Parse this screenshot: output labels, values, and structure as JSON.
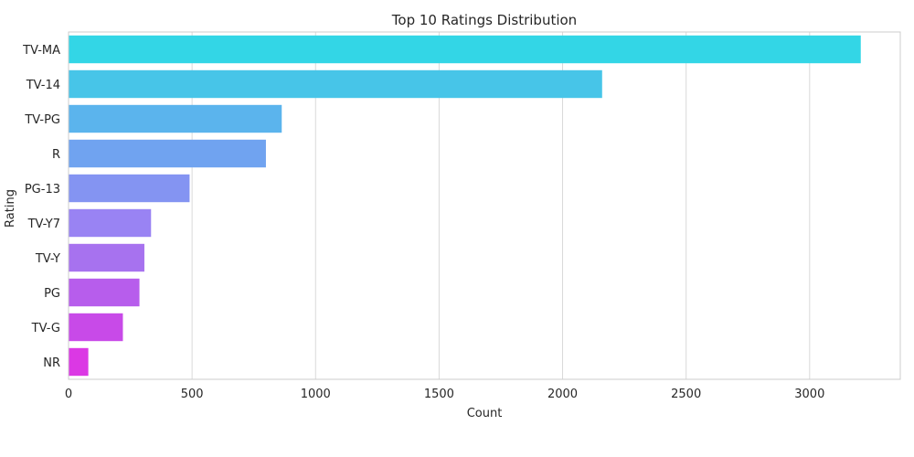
{
  "chart_data": {
    "type": "bar",
    "orientation": "horizontal",
    "title": "Top 10 Ratings Distribution",
    "xlabel": "Count",
    "ylabel": "Rating",
    "categories": [
      "TV-MA",
      "TV-14",
      "TV-PG",
      "R",
      "PG-13",
      "TV-Y7",
      "TV-Y",
      "PG",
      "TV-G",
      "NR"
    ],
    "values": [
      3207,
      2160,
      863,
      799,
      490,
      334,
      307,
      287,
      220,
      80
    ],
    "xlim": [
      0,
      3367
    ],
    "xticks": [
      0,
      500,
      1000,
      1500,
      2000,
      2500,
      3000
    ],
    "colors": [
      "#33d6e6",
      "#47c5e8",
      "#5bb4ed",
      "#70a3f0",
      "#8494f2",
      "#9983f3",
      "#a772ef",
      "#b75dec",
      "#c84ae8",
      "#db38e4"
    ],
    "grid": "x",
    "legend": "none"
  }
}
